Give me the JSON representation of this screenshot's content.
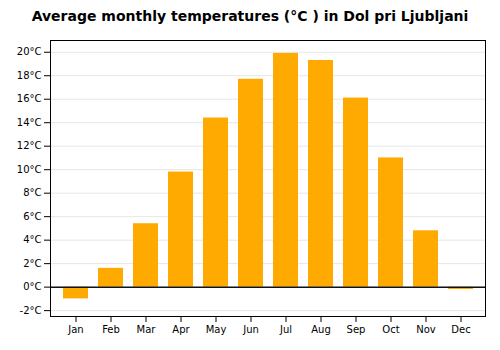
{
  "chart_data": {
    "type": "bar",
    "title": "Average monthly temperatures (°C ) in Dol pri Ljubljani",
    "categories": [
      "Jan",
      "Feb",
      "Mar",
      "Apr",
      "May",
      "Jun",
      "Jul",
      "Aug",
      "Sep",
      "Oct",
      "Nov",
      "Dec"
    ],
    "values": [
      -1.0,
      1.6,
      5.4,
      9.8,
      14.4,
      17.7,
      19.9,
      19.3,
      16.1,
      11.0,
      4.8,
      -0.2
    ],
    "color": "#FFAA00",
    "ylim": [
      -2.5,
      21
    ],
    "yticks": [
      {
        "value": -2,
        "label": "-2°C"
      },
      {
        "value": 0,
        "label": "0°C"
      },
      {
        "value": 2,
        "label": "2°C"
      },
      {
        "value": 4,
        "label": "4°C"
      },
      {
        "value": 6,
        "label": "6°C"
      },
      {
        "value": 8,
        "label": "8°C"
      },
      {
        "value": 10,
        "label": "10°C"
      },
      {
        "value": 12,
        "label": "12°C"
      },
      {
        "value": 14,
        "label": "14°C"
      },
      {
        "value": 16,
        "label": "16°C"
      },
      {
        "value": 18,
        "label": "18°C"
      },
      {
        "value": 20,
        "label": "20°C"
      }
    ],
    "grid": true
  }
}
